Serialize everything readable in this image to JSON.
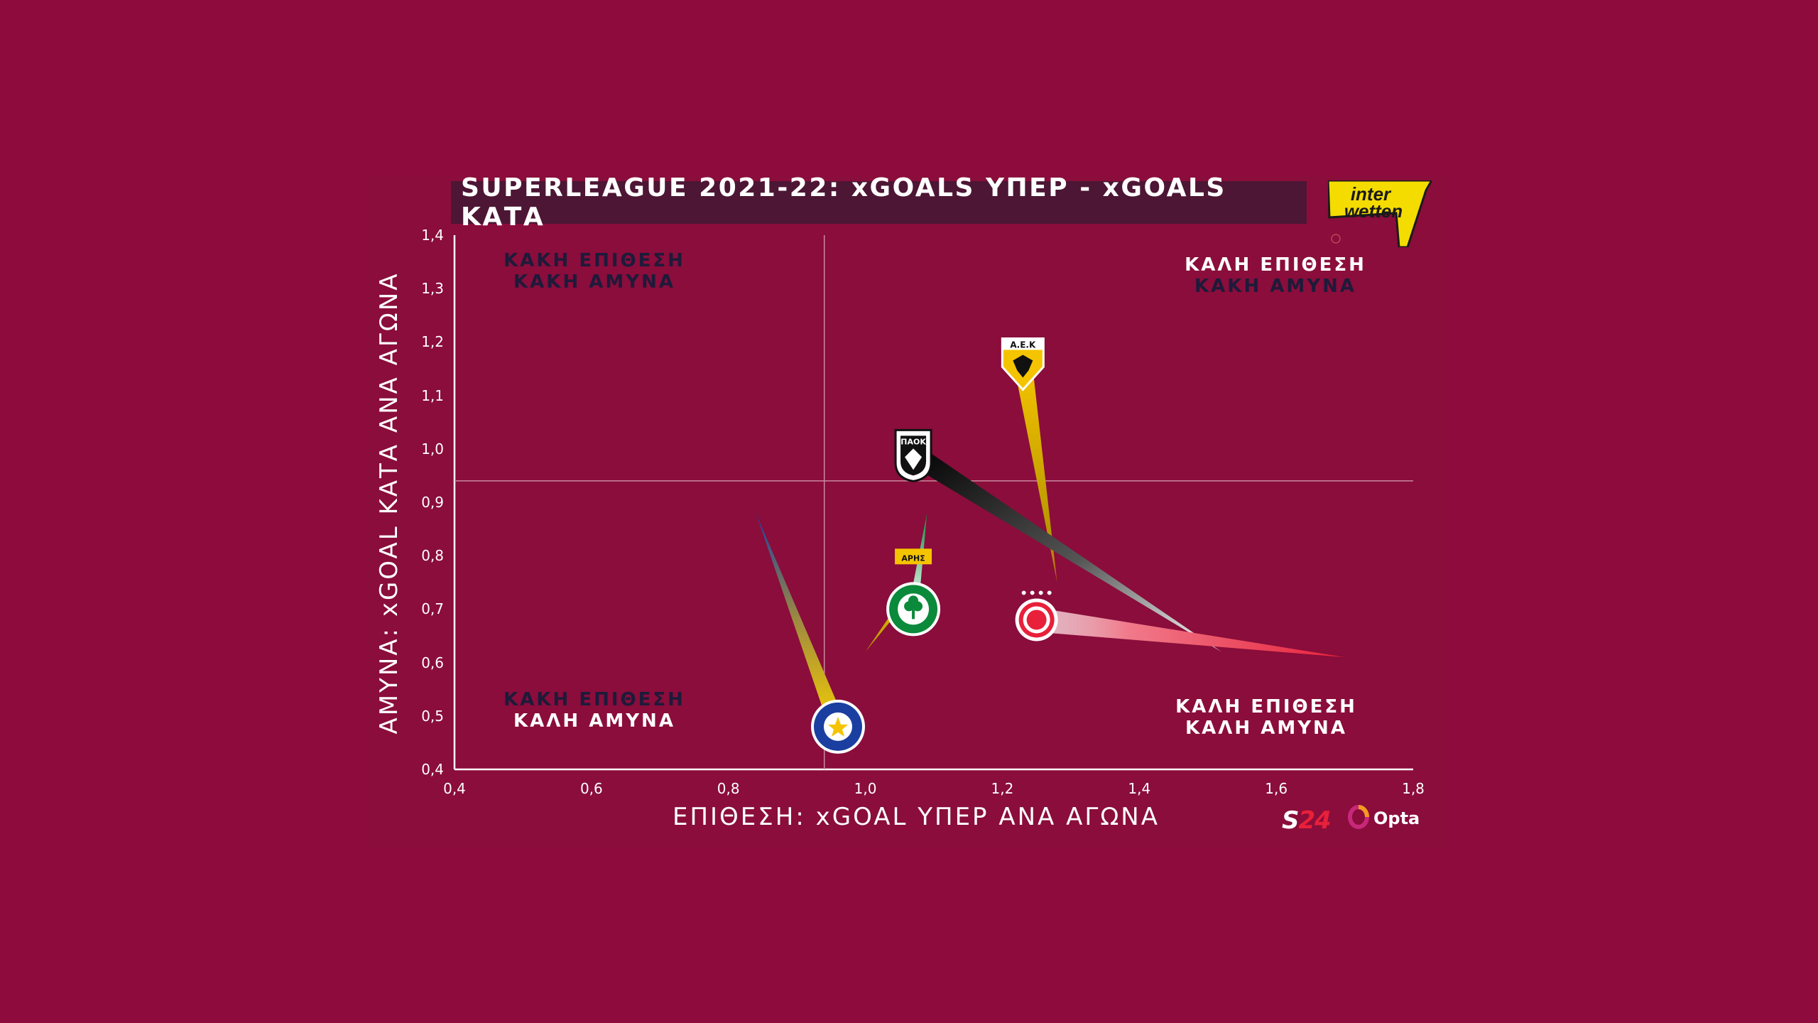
{
  "title": "SUPERLEAGUE 2021-22: xGOALS ΥΠΕΡ - xGOALS ΚΑΤΑ",
  "sponsor": {
    "line1": "inter",
    "line2": "wetten"
  },
  "quadrants": {
    "top_left": {
      "line1": "ΚΑΚΗ ΕΠΙΘΕΣΗ",
      "line2": "ΚΑΚΗ ΑΜΥΝΑ"
    },
    "top_right": {
      "line1": "ΚΑΛΗ ΕΠΙΘΕΣΗ",
      "line2": "ΚΑΚΗ ΑΜΥΝΑ"
    },
    "bottom_left": {
      "line1": "ΚΑΚΗ ΕΠΙΘΕΣΗ",
      "line2": "ΚΑΛΗ ΑΜΥΝΑ"
    },
    "bottom_right": {
      "line1": "ΚΑΛΗ ΕΠΙΘΕΣΗ",
      "line2": "ΚΑΛΗ ΑΜΥΝΑ"
    }
  },
  "brands": {
    "s24_s": "S",
    "s24_num": "24",
    "opta": "Opta"
  },
  "colors": {
    "background": "#8e0b3e",
    "title_bar": "#4c1634",
    "quadrant_line1": "#1e1a3a",
    "quadrant_line2_light": "#ffffff"
  },
  "chart_data": {
    "type": "scatter",
    "xlabel": "ΕΠΙΘΕΣΗ: xGOAL ΥΠΕΡ ΑΝΑ ΑΓΩΝΑ",
    "ylabel": "ΑΜΥΝΑ: xGOAL ΚΑΤΑ ΑΝΑ ΑΓΩΝΑ",
    "xlim": [
      0.4,
      1.8
    ],
    "ylim": [
      0.4,
      1.4
    ],
    "x_ticks": [
      "0,4",
      "0,6",
      "0,8",
      "1,0",
      "1,2",
      "1,4",
      "1,6",
      "1,8"
    ],
    "y_ticks": [
      "0,4",
      "0,5",
      "0,6",
      "0,7",
      "0,8",
      "0,9",
      "1,0",
      "1,1",
      "1,2",
      "1,3",
      "1,4"
    ],
    "reference_lines": {
      "x": 0.94,
      "y": 0.94
    },
    "teams": [
      {
        "abbr": "ΑΕΚ",
        "x": 1.23,
        "y": 1.16,
        "trail_end": [
          1.28,
          0.75
        ],
        "color": "#f5c400",
        "crest_icon": "aek-crest-icon"
      },
      {
        "abbr": "ΠΑΟΚ",
        "x": 1.07,
        "y": 0.99,
        "trail_end": [
          1.52,
          0.62
        ],
        "color": "#111111",
        "crest_icon": "paok-crest-icon"
      },
      {
        "abbr": "Ο.Σ.Φ.Π.",
        "x": 1.25,
        "y": 0.68,
        "trail_end": [
          1.7,
          0.61
        ],
        "color": "#e8203a",
        "crest_icon": "olympiacos-crest-icon"
      },
      {
        "abbr": "ΠΑΝΑΘΗΝΑΪΚΟΣ",
        "x": 1.07,
        "y": 0.7,
        "trail_end": [
          1.09,
          0.88
        ],
        "color": "#0a8a3a",
        "crest_icon": "panathinaikos-crest-icon"
      },
      {
        "abbr": "ΑΡΗΣ",
        "x": 1.07,
        "y": 0.74,
        "trail_end": [
          1.0,
          0.62
        ],
        "color": "#f5c400",
        "crest_icon": "aris-crest-icon"
      },
      {
        "abbr": "ASTERAS TRIPOLIS",
        "x": 0.96,
        "y": 0.48,
        "trail_end": [
          0.84,
          0.88
        ],
        "color": "#1a3fa0",
        "crest_icon": "asteras-crest-icon"
      }
    ]
  }
}
